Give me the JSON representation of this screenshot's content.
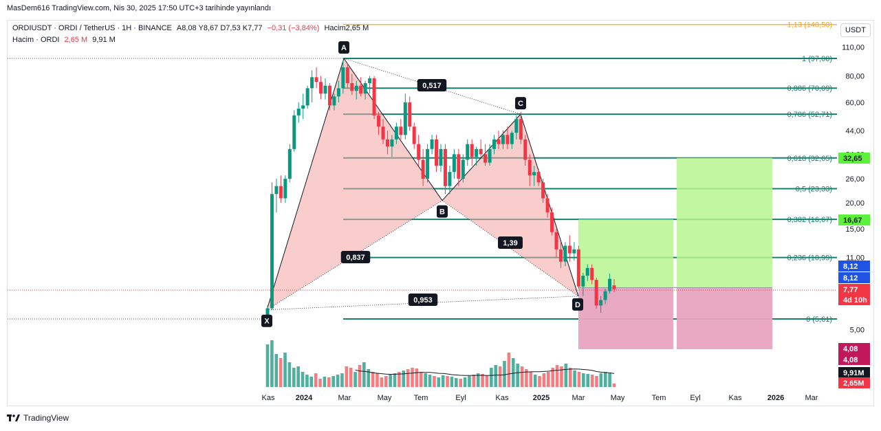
{
  "header": {
    "publish_info": "MasDem616 TradingView.com, Nis 30, 2025 17:50 UTC+3 tarihinde yayınlandı"
  },
  "legend": {
    "symbol": "ORDIUSDT · ORDI / TetherUS · 1H · BINANCE",
    "ohlc": "A8,08  Y8,67  D7,53  K7,77",
    "change": "−0,31 (−3,84%)",
    "volume_label": "Hacim",
    "volume_value": "2,65 M",
    "volume_row_label": "Hacim · ORDI",
    "volume_row_v1": "2,65 M",
    "volume_row_v2": "9,91 M"
  },
  "currency_button": "USDT",
  "footer": {
    "brand": "TradingView"
  },
  "chart_data": {
    "type": "candlestick",
    "price_scale": "log",
    "y_ticks": [
      "110,00",
      "80,00",
      "60,00",
      "44,00",
      "34,00",
      "26,00",
      "20,00",
      "15,00",
      "11,00",
      "8,00",
      "5,00"
    ],
    "x_ticks": [
      "Kas",
      "2024",
      "Mar",
      "May",
      "Tem",
      "Eyl",
      "Kas",
      "2025",
      "Mar",
      "May",
      "Tem",
      "Eyl",
      "Kas",
      "2026",
      "Mar"
    ],
    "fib_levels": [
      {
        "label": "1,13 (140,50)",
        "ratio": 1.13,
        "price": 140.5,
        "color": "#f7a21b"
      },
      {
        "label": "1 (97,00)",
        "ratio": 1,
        "price": 97.0,
        "color": "#13806f"
      },
      {
        "label": "0,886 (70,09)",
        "ratio": 0.886,
        "price": 70.09,
        "color": "#13806f"
      },
      {
        "label": "0,786 (52,71)",
        "ratio": 0.786,
        "price": 52.71,
        "color": "#13806f"
      },
      {
        "label": "0,618 (32,65)",
        "ratio": 0.618,
        "price": 32.65,
        "color": "#13806f"
      },
      {
        "label": "0,5 (23,33)",
        "ratio": 0.5,
        "price": 23.33,
        "color": "#13806f"
      },
      {
        "label": "0,382 (16,67)",
        "ratio": 0.382,
        "price": 16.67,
        "color": "#13806f"
      },
      {
        "label": "0,236 (10,99)",
        "ratio": 0.236,
        "price": 10.99,
        "color": "#13806f"
      },
      {
        "label": "0 (5,61)",
        "ratio": 0,
        "price": 5.61,
        "color": "#13806f"
      }
    ],
    "harmonic_points": [
      {
        "name": "X",
        "price": 6.2
      },
      {
        "name": "A",
        "price": 97.0
      },
      {
        "name": "B",
        "price": 20.5
      },
      {
        "name": "C",
        "price": 52.71
      },
      {
        "name": "D",
        "price": 7.2
      }
    ],
    "harmonic_ratios": [
      "0,517",
      "0,837",
      "1,39",
      "0,953"
    ],
    "price_labels": [
      {
        "text": "32,65",
        "bg": "#5cf23a",
        "fg": "#131722"
      },
      {
        "text": "16,67",
        "bg": "#5cf23a",
        "fg": "#131722"
      },
      {
        "text": "8,12",
        "bg": "#1e53e5",
        "fg": "#ffffff"
      },
      {
        "text": "8,12",
        "bg": "#1e53e5",
        "fg": "#ffffff"
      },
      {
        "text": "7,77",
        "bg": "#f23645",
        "fg": "#ffffff"
      },
      {
        "text": "4d 10h",
        "bg": "#f23645",
        "fg": "#ffffff"
      },
      {
        "text": "4,08",
        "bg": "#c2185b",
        "fg": "#ffffff"
      },
      {
        "text": "4,08",
        "bg": "#c2185b",
        "fg": "#ffffff"
      },
      {
        "text": "9,91M",
        "bg": "#131722",
        "fg": "#ffffff"
      },
      {
        "text": "2,65M",
        "bg": "#f23645",
        "fg": "#ffffff"
      }
    ],
    "candles": [
      {
        "o": 5.7,
        "h": 6.5,
        "l": 5.6,
        "c": 6.3
      },
      {
        "o": 6.3,
        "h": 25,
        "l": 6.2,
        "c": 22
      },
      {
        "o": 22,
        "h": 26,
        "l": 18,
        "c": 24
      },
      {
        "o": 24,
        "h": 27,
        "l": 20,
        "c": 21
      },
      {
        "o": 21,
        "h": 27,
        "l": 20,
        "c": 26
      },
      {
        "o": 26,
        "h": 38,
        "l": 25,
        "c": 36
      },
      {
        "o": 36,
        "h": 55,
        "l": 35,
        "c": 52
      },
      {
        "o": 52,
        "h": 60,
        "l": 48,
        "c": 56
      },
      {
        "o": 56,
        "h": 66,
        "l": 50,
        "c": 58
      },
      {
        "o": 58,
        "h": 72,
        "l": 56,
        "c": 70
      },
      {
        "o": 70,
        "h": 85,
        "l": 60,
        "c": 79
      },
      {
        "o": 79,
        "h": 88,
        "l": 70,
        "c": 75
      },
      {
        "o": 75,
        "h": 80,
        "l": 62,
        "c": 66
      },
      {
        "o": 66,
        "h": 78,
        "l": 62,
        "c": 72
      },
      {
        "o": 72,
        "h": 74,
        "l": 55,
        "c": 58
      },
      {
        "o": 58,
        "h": 66,
        "l": 55,
        "c": 64
      },
      {
        "o": 64,
        "h": 76,
        "l": 60,
        "c": 70
      },
      {
        "o": 70,
        "h": 95,
        "l": 66,
        "c": 88
      },
      {
        "o": 88,
        "h": 92,
        "l": 70,
        "c": 74
      },
      {
        "o": 74,
        "h": 82,
        "l": 65,
        "c": 68
      },
      {
        "o": 68,
        "h": 76,
        "l": 62,
        "c": 72
      },
      {
        "o": 72,
        "h": 79,
        "l": 64,
        "c": 66
      },
      {
        "o": 66,
        "h": 76,
        "l": 62,
        "c": 74
      },
      {
        "o": 74,
        "h": 80,
        "l": 66,
        "c": 78
      },
      {
        "o": 78,
        "h": 80,
        "l": 50,
        "c": 52
      },
      {
        "o": 52,
        "h": 54,
        "l": 42,
        "c": 46
      },
      {
        "o": 46,
        "h": 50,
        "l": 38,
        "c": 40
      },
      {
        "o": 40,
        "h": 44,
        "l": 34,
        "c": 37
      },
      {
        "o": 37,
        "h": 42,
        "l": 33,
        "c": 40
      },
      {
        "o": 40,
        "h": 48,
        "l": 38,
        "c": 46
      },
      {
        "o": 46,
        "h": 50,
        "l": 40,
        "c": 42
      },
      {
        "o": 42,
        "h": 66,
        "l": 40,
        "c": 60
      },
      {
        "o": 60,
        "h": 64,
        "l": 44,
        "c": 46
      },
      {
        "o": 46,
        "h": 48,
        "l": 36,
        "c": 38
      },
      {
        "o": 38,
        "h": 42,
        "l": 30,
        "c": 32
      },
      {
        "o": 32,
        "h": 36,
        "l": 24,
        "c": 26
      },
      {
        "o": 26,
        "h": 38,
        "l": 25,
        "c": 36
      },
      {
        "o": 36,
        "h": 42,
        "l": 34,
        "c": 40
      },
      {
        "o": 40,
        "h": 42,
        "l": 28,
        "c": 30
      },
      {
        "o": 30,
        "h": 38,
        "l": 28,
        "c": 36
      },
      {
        "o": 36,
        "h": 38,
        "l": 22,
        "c": 24
      },
      {
        "o": 24,
        "h": 30,
        "l": 22,
        "c": 28
      },
      {
        "o": 28,
        "h": 36,
        "l": 26,
        "c": 34
      },
      {
        "o": 34,
        "h": 36,
        "l": 24,
        "c": 26
      },
      {
        "o": 26,
        "h": 34,
        "l": 25,
        "c": 32
      },
      {
        "o": 32,
        "h": 40,
        "l": 30,
        "c": 38
      },
      {
        "o": 38,
        "h": 40,
        "l": 30,
        "c": 33
      },
      {
        "o": 33,
        "h": 37,
        "l": 30,
        "c": 36
      },
      {
        "o": 36,
        "h": 40,
        "l": 33,
        "c": 34
      },
      {
        "o": 34,
        "h": 38,
        "l": 30,
        "c": 31
      },
      {
        "o": 31,
        "h": 38,
        "l": 30,
        "c": 36
      },
      {
        "o": 36,
        "h": 42,
        "l": 34,
        "c": 40
      },
      {
        "o": 40,
        "h": 44,
        "l": 36,
        "c": 38
      },
      {
        "o": 38,
        "h": 44,
        "l": 36,
        "c": 42
      },
      {
        "o": 42,
        "h": 46,
        "l": 36,
        "c": 38
      },
      {
        "o": 38,
        "h": 44,
        "l": 36,
        "c": 43
      },
      {
        "o": 43,
        "h": 52,
        "l": 40,
        "c": 50
      },
      {
        "o": 50,
        "h": 54,
        "l": 38,
        "c": 40
      },
      {
        "o": 40,
        "h": 42,
        "l": 30,
        "c": 32
      },
      {
        "o": 32,
        "h": 34,
        "l": 24,
        "c": 27
      },
      {
        "o": 27,
        "h": 30,
        "l": 24,
        "c": 28
      },
      {
        "o": 28,
        "h": 29,
        "l": 24,
        "c": 25
      },
      {
        "o": 25,
        "h": 26,
        "l": 20,
        "c": 21
      },
      {
        "o": 21,
        "h": 22,
        "l": 17,
        "c": 18
      },
      {
        "o": 18,
        "h": 19,
        "l": 14,
        "c": 14.5
      },
      {
        "o": 14.5,
        "h": 15,
        "l": 11,
        "c": 12
      },
      {
        "o": 12,
        "h": 13,
        "l": 9.8,
        "c": 10.5
      },
      {
        "o": 10.5,
        "h": 13,
        "l": 10,
        "c": 12.5
      },
      {
        "o": 12.5,
        "h": 14,
        "l": 10.5,
        "c": 11.5
      },
      {
        "o": 11.5,
        "h": 13,
        "l": 10.6,
        "c": 12
      },
      {
        "o": 12,
        "h": 12.5,
        "l": 7.8,
        "c": 8.0
      },
      {
        "o": 8.0,
        "h": 9.3,
        "l": 7.2,
        "c": 9.0
      },
      {
        "o": 9.0,
        "h": 10.2,
        "l": 8.5,
        "c": 9.8
      },
      {
        "o": 9.8,
        "h": 10.2,
        "l": 8.2,
        "c": 8.6
      },
      {
        "o": 8.6,
        "h": 8.8,
        "l": 6.3,
        "c": 6.5
      },
      {
        "o": 6.5,
        "h": 7.2,
        "l": 6.0,
        "c": 6.9
      },
      {
        "o": 6.9,
        "h": 7.8,
        "l": 6.6,
        "c": 7.6
      },
      {
        "o": 7.6,
        "h": 9.2,
        "l": 7.4,
        "c": 8.7
      },
      {
        "o": 8.1,
        "h": 8.67,
        "l": 7.53,
        "c": 7.77
      }
    ],
    "volumes": [
      0.62,
      0.68,
      0.48,
      0.42,
      0.5,
      0.36,
      0.28,
      0.3,
      0.22,
      0.18,
      0.15,
      0.2,
      0.12,
      0.15,
      0.14,
      0.16,
      0.18,
      0.2,
      0.3,
      0.28,
      0.22,
      0.32,
      0.36,
      0.26,
      0.22,
      0.2,
      0.14,
      0.16,
      0.18,
      0.2,
      0.22,
      0.24,
      0.26,
      0.28,
      0.27,
      0.22,
      0.2,
      0.18,
      0.16,
      0.14,
      0.17,
      0.16,
      0.15,
      0.13,
      0.12,
      0.14,
      0.16,
      0.18,
      0.2,
      0.19,
      0.17,
      0.28,
      0.32,
      0.3,
      0.38,
      0.5,
      0.42,
      0.34,
      0.3,
      0.26,
      0.22,
      0.18,
      0.16,
      0.2,
      0.22,
      0.28,
      0.32,
      0.3,
      0.34,
      0.28,
      0.24,
      0.22,
      0.2,
      0.19,
      0.18,
      0.16,
      0.2,
      0.22,
      0.2,
      0.05
    ]
  }
}
